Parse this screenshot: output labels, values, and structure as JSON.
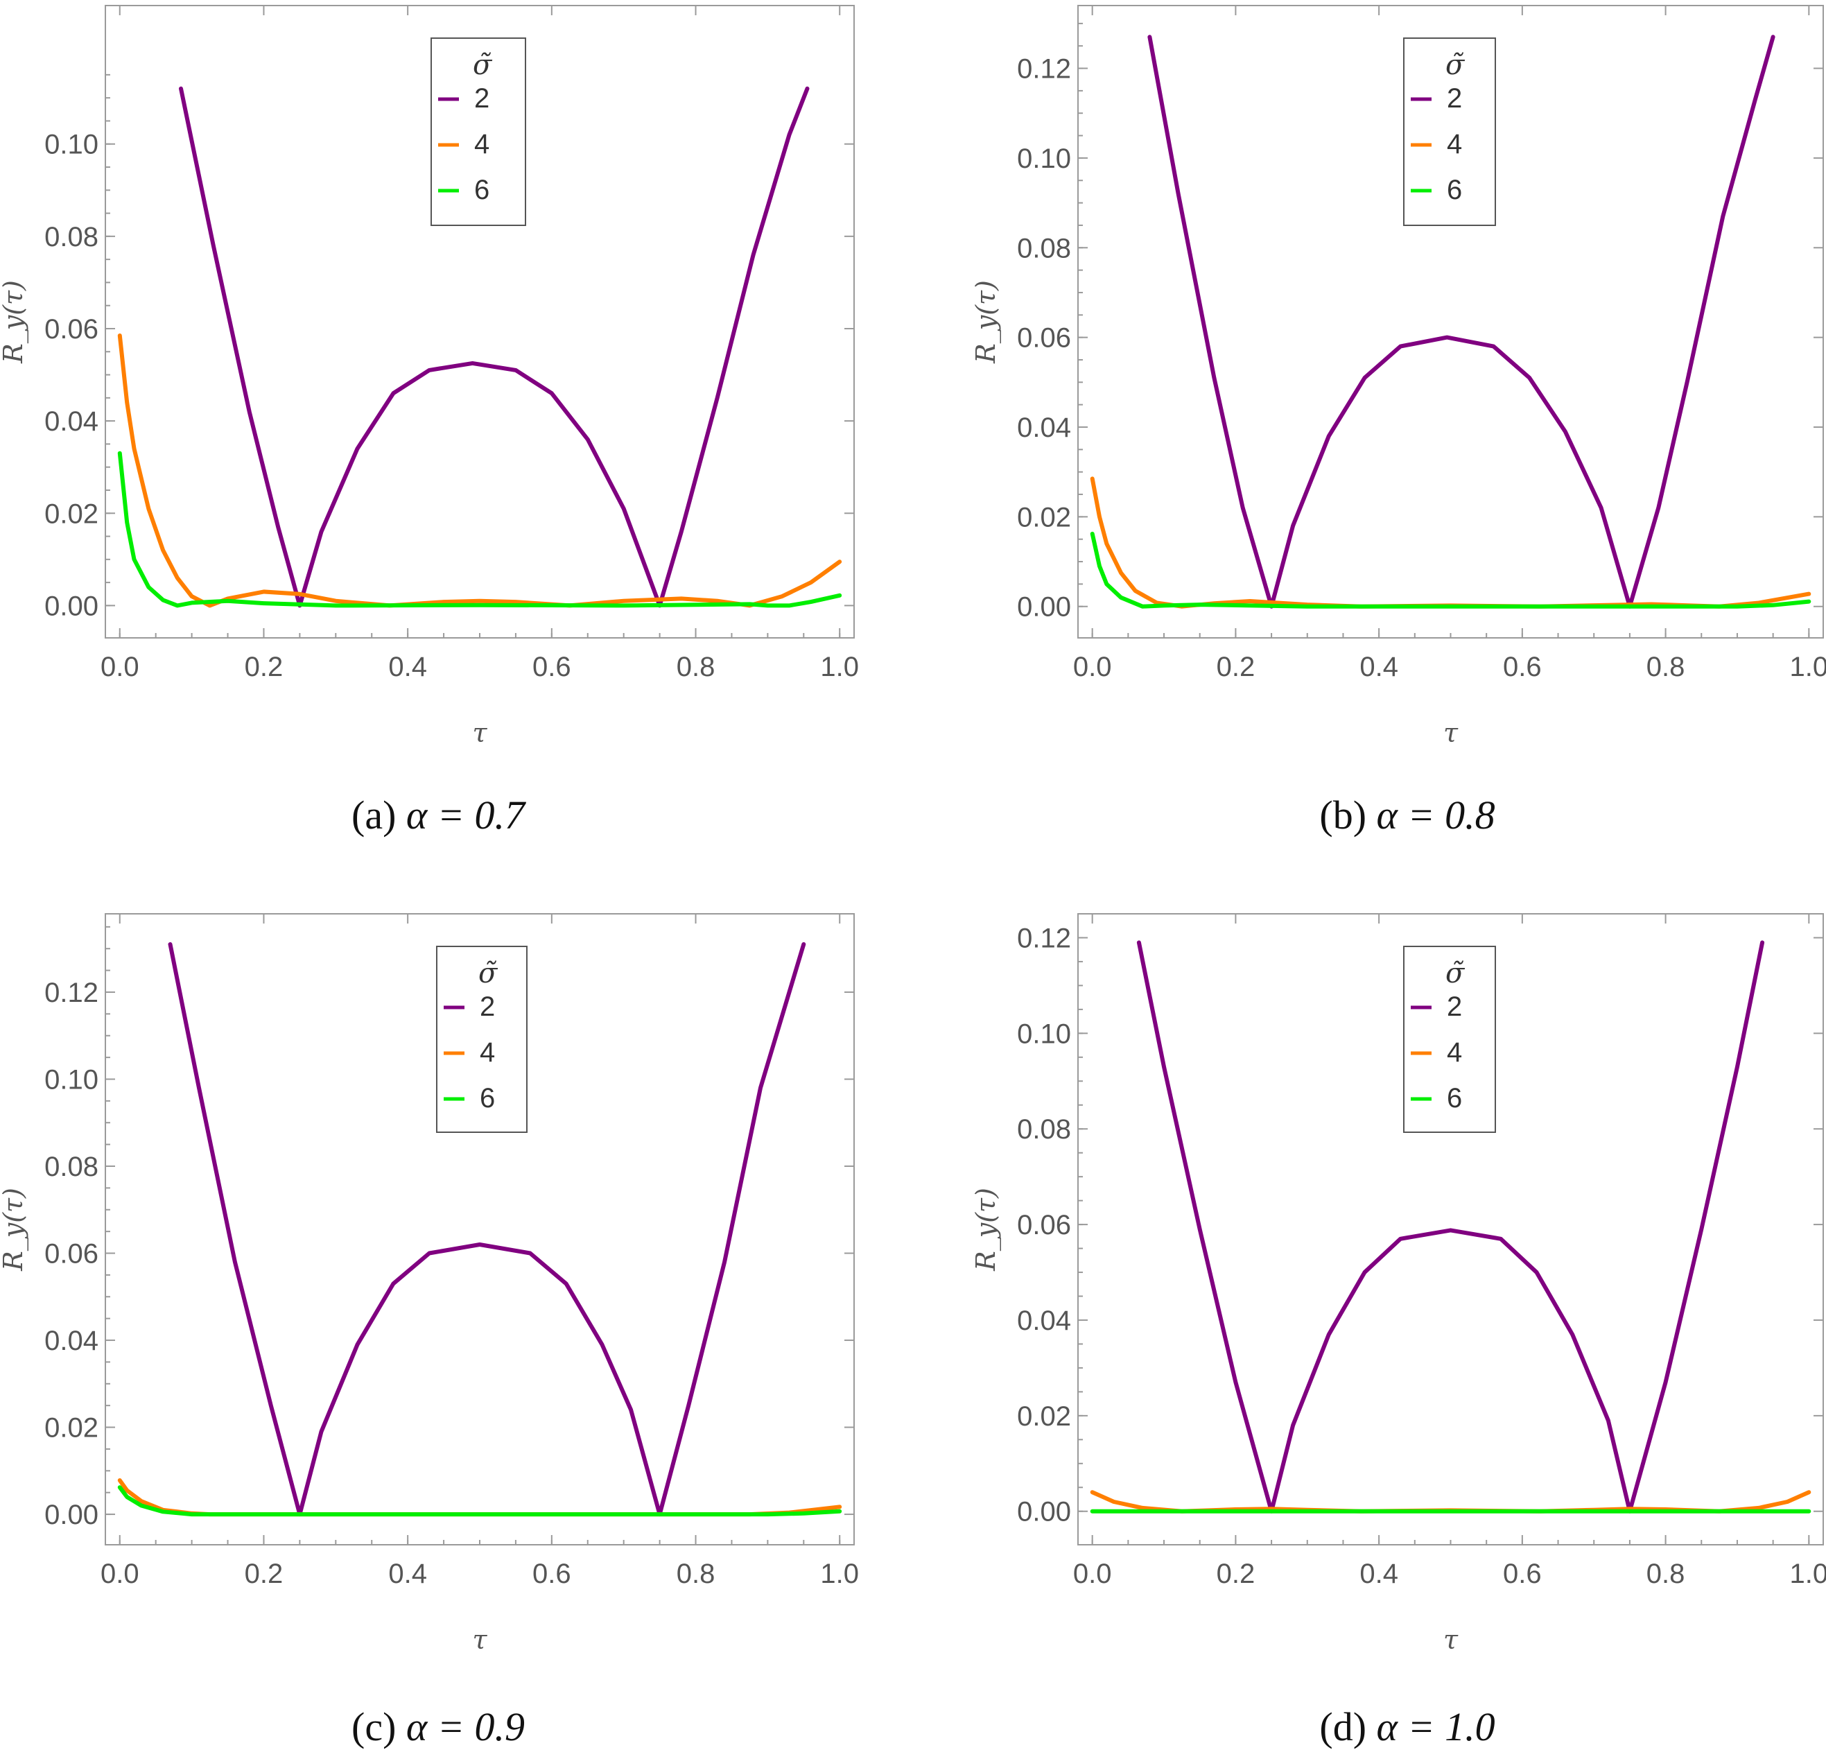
{
  "figure": {
    "legend_title": "σ̃",
    "y_axis_label": "R_y(τ)",
    "x_axis_label": "τ",
    "colors": {
      "sigma2": "#800080",
      "sigma4": "#ff7f00",
      "sigma6": "#00ee00"
    }
  },
  "chart_data": [
    {
      "type": "line",
      "caption_prefix": "(a)",
      "caption_param": "α = 0.7",
      "xlabel": "τ",
      "ylabel": "R_y(τ)",
      "xlim": [
        -0.02,
        1.02
      ],
      "ylim": [
        -0.007,
        0.13
      ],
      "xticks": [
        "0.0",
        "0.2",
        "0.4",
        "0.6",
        "0.8",
        "1.0"
      ],
      "yticks": [
        "0.00",
        "0.02",
        "0.04",
        "0.06",
        "0.08",
        "0.10"
      ],
      "legend": {
        "title": "σ̃",
        "placement": "top-center",
        "entries": [
          "2",
          "4",
          "6"
        ]
      },
      "series": [
        {
          "name": "2",
          "color": "#800080",
          "points": [
            [
              0.085,
              0.112
            ],
            [
              0.13,
              0.078
            ],
            [
              0.18,
              0.042
            ],
            [
              0.22,
              0.017
            ],
            [
              0.25,
              0.0
            ],
            [
              0.28,
              0.016
            ],
            [
              0.33,
              0.034
            ],
            [
              0.38,
              0.046
            ],
            [
              0.43,
              0.051
            ],
            [
              0.49,
              0.0525
            ],
            [
              0.55,
              0.051
            ],
            [
              0.6,
              0.046
            ],
            [
              0.65,
              0.036
            ],
            [
              0.7,
              0.021
            ],
            [
              0.75,
              0.0
            ],
            [
              0.78,
              0.016
            ],
            [
              0.83,
              0.045
            ],
            [
              0.88,
              0.076
            ],
            [
              0.93,
              0.102
            ],
            [
              0.955,
              0.112
            ]
          ]
        },
        {
          "name": "4",
          "color": "#ff7f00",
          "points": [
            [
              0.0,
              0.0585
            ],
            [
              0.01,
              0.044
            ],
            [
              0.02,
              0.034
            ],
            [
              0.04,
              0.021
            ],
            [
              0.06,
              0.012
            ],
            [
              0.08,
              0.006
            ],
            [
              0.1,
              0.002
            ],
            [
              0.125,
              0.0
            ],
            [
              0.15,
              0.0015
            ],
            [
              0.2,
              0.003
            ],
            [
              0.25,
              0.0025
            ],
            [
              0.3,
              0.001
            ],
            [
              0.375,
              0.0
            ],
            [
              0.45,
              0.0008
            ],
            [
              0.5,
              0.001
            ],
            [
              0.55,
              0.0008
            ],
            [
              0.625,
              0.0
            ],
            [
              0.7,
              0.001
            ],
            [
              0.78,
              0.0015
            ],
            [
              0.83,
              0.001
            ],
            [
              0.875,
              0.0
            ],
            [
              0.92,
              0.002
            ],
            [
              0.96,
              0.005
            ],
            [
              1.0,
              0.0095
            ]
          ]
        },
        {
          "name": "6",
          "color": "#00ee00",
          "points": [
            [
              0.0,
              0.033
            ],
            [
              0.01,
              0.018
            ],
            [
              0.02,
              0.01
            ],
            [
              0.04,
              0.004
            ],
            [
              0.06,
              0.0012
            ],
            [
              0.08,
              0.0
            ],
            [
              0.1,
              0.0006
            ],
            [
              0.15,
              0.001
            ],
            [
              0.2,
              0.0005
            ],
            [
              0.3,
              0.0
            ],
            [
              0.5,
              0.0001
            ],
            [
              0.7,
              0.0
            ],
            [
              0.875,
              0.0003
            ],
            [
              0.9,
              0.0
            ],
            [
              0.93,
              0.0
            ],
            [
              0.96,
              0.0008
            ],
            [
              1.0,
              0.0022
            ]
          ]
        }
      ]
    },
    {
      "type": "line",
      "caption_prefix": "(b)",
      "caption_param": "α = 0.8",
      "xlabel": "τ",
      "ylabel": "R_y(τ)",
      "xlim": [
        -0.02,
        1.02
      ],
      "ylim": [
        -0.007,
        0.134
      ],
      "xticks": [
        "0.0",
        "0.2",
        "0.4",
        "0.6",
        "0.8",
        "1.0"
      ],
      "yticks": [
        "0.00",
        "0.02",
        "0.04",
        "0.06",
        "0.08",
        "0.10",
        "0.12"
      ],
      "legend": {
        "title": "σ̃",
        "placement": "top-center",
        "entries": [
          "2",
          "4",
          "6"
        ]
      },
      "series": [
        {
          "name": "2",
          "color": "#800080",
          "points": [
            [
              0.08,
              0.127
            ],
            [
              0.12,
              0.092
            ],
            [
              0.17,
              0.051
            ],
            [
              0.21,
              0.022
            ],
            [
              0.25,
              0.0
            ],
            [
              0.28,
              0.018
            ],
            [
              0.33,
              0.038
            ],
            [
              0.38,
              0.051
            ],
            [
              0.43,
              0.058
            ],
            [
              0.495,
              0.06
            ],
            [
              0.56,
              0.058
            ],
            [
              0.61,
              0.051
            ],
            [
              0.66,
              0.039
            ],
            [
              0.71,
              0.022
            ],
            [
              0.75,
              0.0
            ],
            [
              0.79,
              0.022
            ],
            [
              0.83,
              0.05
            ],
            [
              0.88,
              0.087
            ],
            [
              0.925,
              0.113
            ],
            [
              0.95,
              0.127
            ]
          ]
        },
        {
          "name": "4",
          "color": "#ff7f00",
          "points": [
            [
              0.0,
              0.0285
            ],
            [
              0.01,
              0.02
            ],
            [
              0.02,
              0.014
            ],
            [
              0.04,
              0.0075
            ],
            [
              0.06,
              0.0035
            ],
            [
              0.09,
              0.0008
            ],
            [
              0.125,
              0.0
            ],
            [
              0.17,
              0.0007
            ],
            [
              0.22,
              0.0012
            ],
            [
              0.3,
              0.0004
            ],
            [
              0.375,
              0.0
            ],
            [
              0.5,
              0.0002
            ],
            [
              0.625,
              0.0
            ],
            [
              0.78,
              0.0005
            ],
            [
              0.875,
              0.0
            ],
            [
              0.93,
              0.0008
            ],
            [
              1.0,
              0.0028
            ]
          ]
        },
        {
          "name": "6",
          "color": "#00ee00",
          "points": [
            [
              0.0,
              0.0162
            ],
            [
              0.01,
              0.009
            ],
            [
              0.02,
              0.005
            ],
            [
              0.04,
              0.002
            ],
            [
              0.07,
              0.0
            ],
            [
              0.1,
              0.0002
            ],
            [
              0.15,
              0.0004
            ],
            [
              0.3,
              0.0
            ],
            [
              0.5,
              0.0
            ],
            [
              0.7,
              0.0
            ],
            [
              0.9,
              0.0
            ],
            [
              0.95,
              0.0003
            ],
            [
              1.0,
              0.0011
            ]
          ]
        }
      ]
    },
    {
      "type": "line",
      "caption_prefix": "(c)",
      "caption_param": "α = 0.9",
      "xlabel": "τ",
      "ylabel": "R_y(τ)",
      "xlim": [
        -0.02,
        1.02
      ],
      "ylim": [
        -0.007,
        0.138
      ],
      "xticks": [
        "0.0",
        "0.2",
        "0.4",
        "0.6",
        "0.8",
        "1.0"
      ],
      "yticks": [
        "0.00",
        "0.02",
        "0.04",
        "0.06",
        "0.08",
        "0.10",
        "0.12"
      ],
      "legend": {
        "title": "σ̃",
        "placement": "top-center",
        "entries": [
          "2",
          "4",
          "6"
        ]
      },
      "series": [
        {
          "name": "2",
          "color": "#800080",
          "points": [
            [
              0.07,
              0.131
            ],
            [
              0.11,
              0.098
            ],
            [
              0.16,
              0.058
            ],
            [
              0.21,
              0.025
            ],
            [
              0.25,
              0.0
            ],
            [
              0.28,
              0.019
            ],
            [
              0.33,
              0.039
            ],
            [
              0.38,
              0.053
            ],
            [
              0.43,
              0.06
            ],
            [
              0.5,
              0.062
            ],
            [
              0.57,
              0.06
            ],
            [
              0.62,
              0.053
            ],
            [
              0.67,
              0.039
            ],
            [
              0.71,
              0.024
            ],
            [
              0.75,
              0.0
            ],
            [
              0.79,
              0.025
            ],
            [
              0.84,
              0.058
            ],
            [
              0.89,
              0.098
            ],
            [
              0.93,
              0.12
            ],
            [
              0.95,
              0.131
            ]
          ]
        },
        {
          "name": "4",
          "color": "#ff7f00",
          "points": [
            [
              0.0,
              0.0078
            ],
            [
              0.01,
              0.0055
            ],
            [
              0.03,
              0.003
            ],
            [
              0.06,
              0.001
            ],
            [
              0.1,
              0.0002
            ],
            [
              0.125,
              0.0
            ],
            [
              0.3,
              0.0
            ],
            [
              0.5,
              0.0
            ],
            [
              0.7,
              0.0
            ],
            [
              0.875,
              0.0
            ],
            [
              0.93,
              0.0004
            ],
            [
              1.0,
              0.0017
            ]
          ]
        },
        {
          "name": "6",
          "color": "#00ee00",
          "points": [
            [
              0.0,
              0.0062
            ],
            [
              0.01,
              0.004
            ],
            [
              0.03,
              0.002
            ],
            [
              0.06,
              0.0006
            ],
            [
              0.1,
              0.0
            ],
            [
              0.3,
              0.0
            ],
            [
              0.5,
              0.0
            ],
            [
              0.7,
              0.0
            ],
            [
              0.9,
              0.0
            ],
            [
              0.95,
              0.0002
            ],
            [
              1.0,
              0.0007
            ]
          ]
        }
      ]
    },
    {
      "type": "line",
      "caption_prefix": "(d)",
      "caption_param": "α = 1.0",
      "xlabel": "τ",
      "ylabel": "R_y(τ)",
      "xlim": [
        -0.02,
        1.02
      ],
      "ylim": [
        -0.007,
        0.125
      ],
      "xticks": [
        "0.0",
        "0.2",
        "0.4",
        "0.6",
        "0.8",
        "1.0"
      ],
      "yticks": [
        "0.00",
        "0.02",
        "0.04",
        "0.06",
        "0.08",
        "0.10",
        "0.12"
      ],
      "legend": {
        "title": "σ̃",
        "placement": "top-center",
        "entries": [
          "2",
          "4",
          "6"
        ]
      },
      "series": [
        {
          "name": "2",
          "color": "#800080",
          "points": [
            [
              0.065,
              0.119
            ],
            [
              0.1,
              0.093
            ],
            [
              0.15,
              0.059
            ],
            [
              0.2,
              0.027
            ],
            [
              0.25,
              0.0
            ],
            [
              0.28,
              0.018
            ],
            [
              0.33,
              0.037
            ],
            [
              0.38,
              0.05
            ],
            [
              0.43,
              0.057
            ],
            [
              0.5,
              0.0588
            ],
            [
              0.57,
              0.057
            ],
            [
              0.62,
              0.05
            ],
            [
              0.67,
              0.037
            ],
            [
              0.72,
              0.019
            ],
            [
              0.75,
              0.0
            ],
            [
              0.8,
              0.027
            ],
            [
              0.85,
              0.059
            ],
            [
              0.9,
              0.093
            ],
            [
              0.935,
              0.119
            ]
          ]
        },
        {
          "name": "4",
          "color": "#ff7f00",
          "points": [
            [
              0.0,
              0.004
            ],
            [
              0.03,
              0.002
            ],
            [
              0.07,
              0.0007
            ],
            [
              0.125,
              0.0
            ],
            [
              0.2,
              0.0004
            ],
            [
              0.25,
              0.0005
            ],
            [
              0.3,
              0.0003
            ],
            [
              0.375,
              0.0
            ],
            [
              0.5,
              0.0002
            ],
            [
              0.625,
              0.0
            ],
            [
              0.7,
              0.0003
            ],
            [
              0.75,
              0.0005
            ],
            [
              0.8,
              0.0004
            ],
            [
              0.875,
              0.0
            ],
            [
              0.93,
              0.0007
            ],
            [
              0.97,
              0.002
            ],
            [
              1.0,
              0.004
            ]
          ]
        },
        {
          "name": "6",
          "color": "#00ee00",
          "points": [
            [
              0.0,
              0.0
            ],
            [
              0.5,
              0.0
            ],
            [
              1.0,
              0.0
            ]
          ]
        }
      ]
    }
  ]
}
